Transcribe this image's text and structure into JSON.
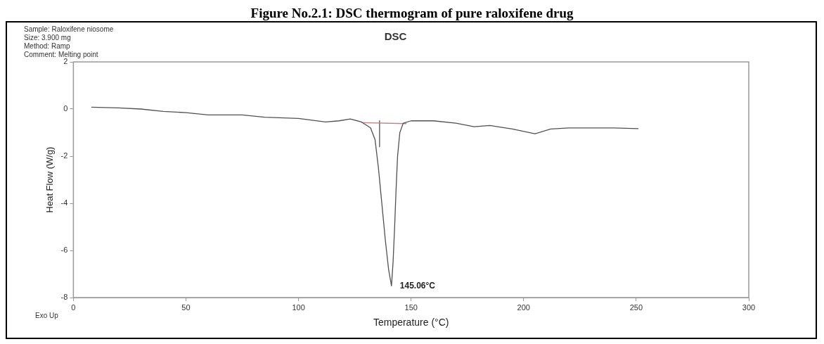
{
  "chart_data": {
    "type": "line",
    "title": "DSC",
    "xlabel": "Temperature (°C)",
    "ylabel": "Heat Flow (W/g)",
    "annotations": [
      "Figure No.2.1: DSC thermogram of pure raloxifene drug",
      "Sample: Raloxifene niosome",
      "Size: 3.900 mg",
      "Method: Ramp",
      "Comment: Melting point",
      "Exo Up",
      {
        "text": "145.06°C",
        "x": 141.3,
        "y": -7.5
      }
    ],
    "series": [
      {
        "color": "#505050",
        "x": [
          8,
          20,
          30,
          40,
          50,
          60,
          75,
          85,
          100,
          112,
          118,
          123,
          128,
          132,
          134,
          135.5,
          137,
          138.5,
          140,
          141.3,
          142,
          142.7,
          143.3,
          144,
          145,
          146.5,
          150,
          160,
          170,
          178,
          185,
          195,
          205,
          212,
          220,
          240,
          251
        ],
        "values": [
          0.08,
          0.05,
          0,
          -0.1,
          -0.15,
          -0.25,
          -0.25,
          -0.35,
          -0.4,
          -0.55,
          -0.5,
          -0.42,
          -0.55,
          -0.8,
          -1.3,
          -2.5,
          -4,
          -5.5,
          -6.8,
          -7.5,
          -6.5,
          -5,
          -3.5,
          -2,
          -1,
          -0.6,
          -0.5,
          -0.5,
          -0.6,
          -0.75,
          -0.7,
          -0.85,
          -1.05,
          -0.85,
          -0.8,
          -0.8,
          -0.83
        ]
      },
      {
        "color": "#c08080",
        "x": [
          128,
          148
        ],
        "values": [
          -0.58,
          -0.62
        ]
      },
      {
        "color": "#505050",
        "x": [
          136,
          136
        ],
        "values": [
          -0.5,
          -1.6
        ]
      }
    ],
    "xlim": [
      0,
      300
    ],
    "xticks": [
      0,
      50,
      100,
      150,
      200,
      250,
      300
    ],
    "ylim": [
      -8,
      2
    ],
    "yticks": [
      -8,
      -6,
      -4,
      -2,
      0,
      2
    ],
    "grid": false,
    "legend": false,
    "marker": "none",
    "line_style": "solid"
  }
}
